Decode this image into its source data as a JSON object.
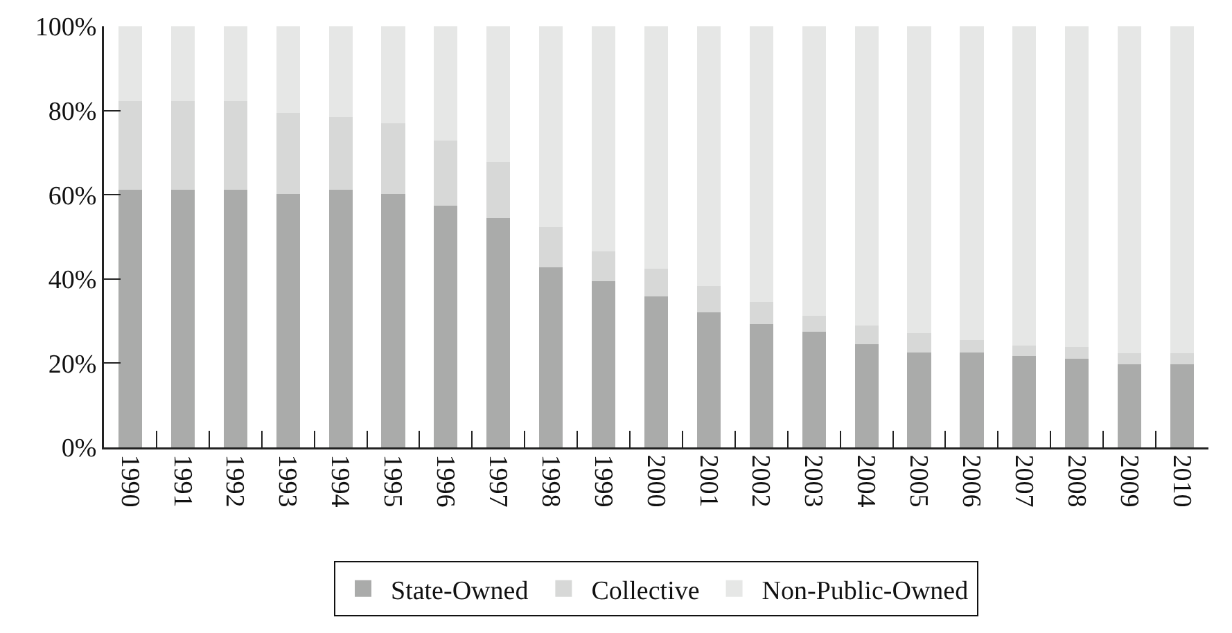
{
  "chart_data": {
    "type": "bar",
    "stacked": true,
    "categories": [
      "1990",
      "1991",
      "1992",
      "1993",
      "1994",
      "1995",
      "1996",
      "1997",
      "1998",
      "1999",
      "2000",
      "2001",
      "2002",
      "2003",
      "2004",
      "2005",
      "2006",
      "2007",
      "2008",
      "2009",
      "2010"
    ],
    "series": [
      {
        "name": "State-Owned",
        "color": "#aaabaa",
        "values": [
          61.2,
          61.2,
          61.2,
          60.2,
          61.2,
          60.2,
          57.4,
          54.5,
          42.8,
          39.4,
          35.9,
          32.1,
          29.3,
          27.4,
          24.5,
          22.6,
          22.6,
          21.7,
          21.1,
          19.8,
          19.8
        ]
      },
      {
        "name": "Collective",
        "color": "#d7d8d7",
        "values": [
          21.1,
          21.1,
          21.1,
          19.3,
          17.3,
          16.7,
          15.4,
          13.3,
          9.5,
          7.2,
          6.6,
          6.3,
          5.3,
          3.8,
          4.4,
          4.5,
          2.9,
          2.5,
          2.8,
          2.5,
          2.5
        ]
      },
      {
        "name": "Non-Public-Owned",
        "color": "#e6e7e6",
        "values": [
          17.7,
          17.7,
          17.7,
          20.5,
          21.5,
          23.1,
          27.2,
          32.2,
          47.7,
          53.4,
          57.5,
          61.6,
          65.4,
          68.8,
          71.1,
          72.9,
          74.5,
          75.8,
          76.1,
          77.7,
          77.7
        ]
      }
    ],
    "ylim": [
      0,
      100
    ],
    "yticks": [
      {
        "value": 0,
        "label": "0%"
      },
      {
        "value": 20,
        "label": "20%"
      },
      {
        "value": 40,
        "label": "40%"
      },
      {
        "value": 60,
        "label": "60%"
      },
      {
        "value": 80,
        "label": "80%"
      },
      {
        "value": 100,
        "label": "100%"
      }
    ],
    "grid": false,
    "legend": "bottom"
  }
}
